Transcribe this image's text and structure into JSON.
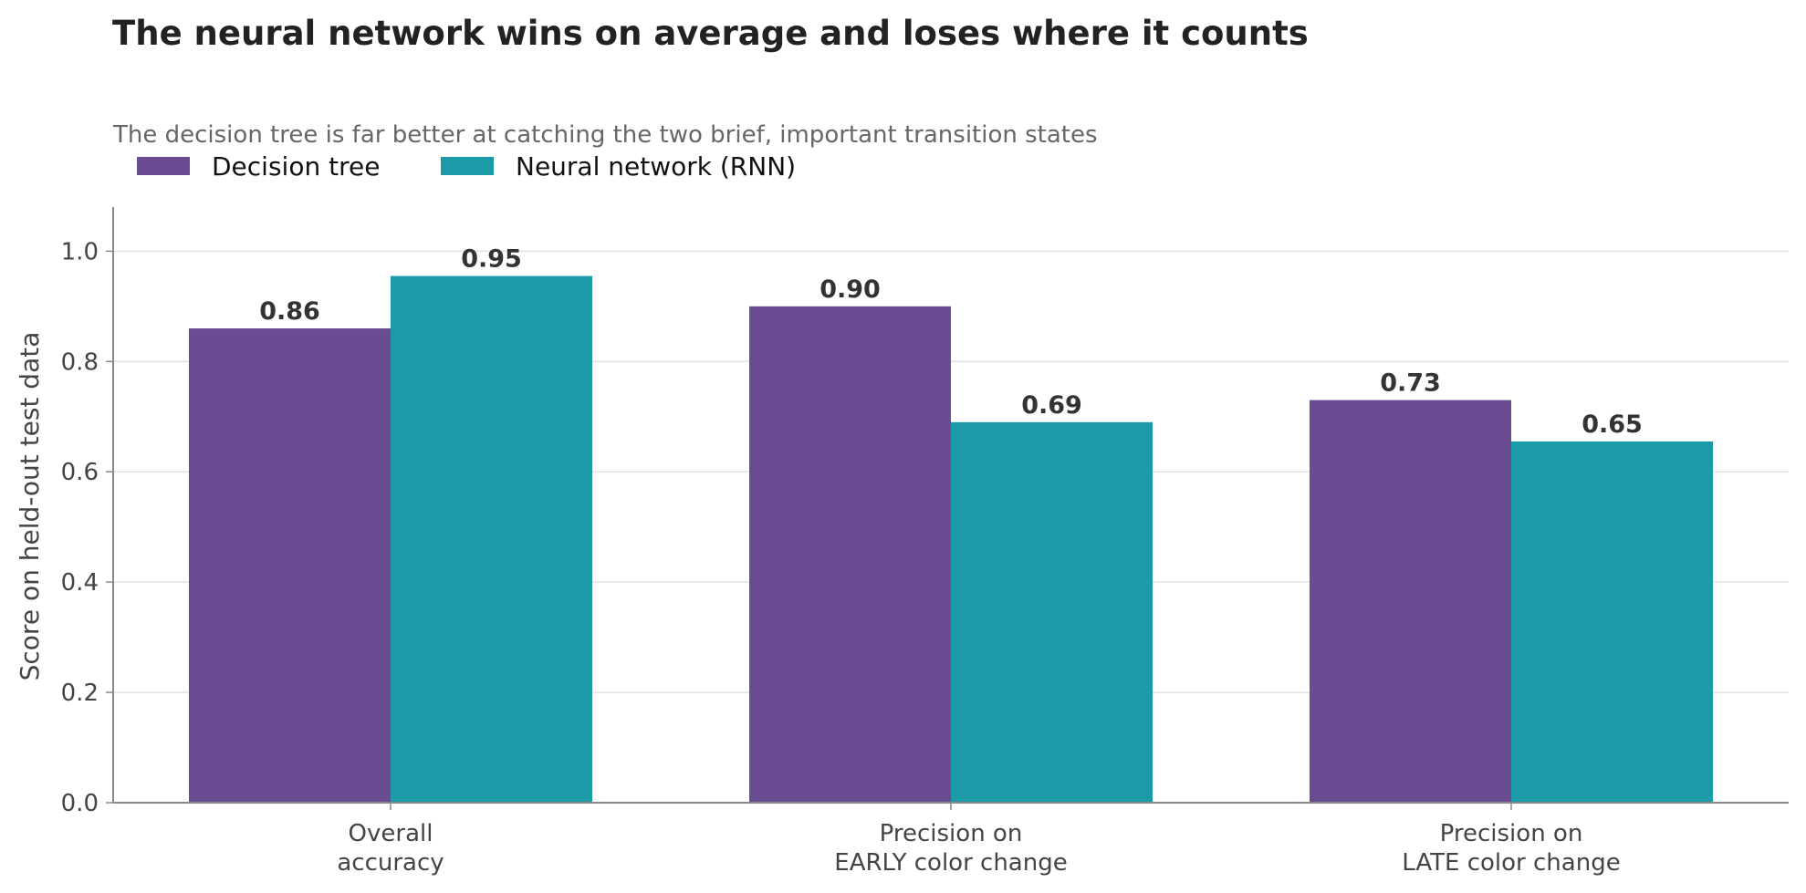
{
  "title": "The neural network wins on average and loses where it counts",
  "subtitle": "The decision tree is far better at catching the two brief, important transition states",
  "chart_data": {
    "type": "bar",
    "categories": [
      [
        "Overall",
        "accuracy"
      ],
      [
        "Precision on",
        "EARLY color change"
      ],
      [
        "Precision on",
        "LATE color change"
      ]
    ],
    "series": [
      {
        "name": "Decision tree",
        "color": "#6a4c93",
        "values": [
          0.86,
          0.9,
          0.73
        ],
        "labels": [
          "0.86",
          "0.90",
          "0.73"
        ]
      },
      {
        "name": "Neural network (RNN)",
        "color": "#1c9aa8",
        "values": [
          0.955,
          0.69,
          0.655
        ],
        "labels": [
          "0.95",
          "0.69",
          "0.65"
        ]
      }
    ],
    "ylabel": "Score on held-out test data",
    "xlabel": "",
    "ylim": [
      0,
      1.08
    ],
    "yticks": [
      0.0,
      0.2,
      0.4,
      0.6,
      0.8,
      1.0
    ],
    "ytick_labels": [
      "0.0",
      "0.2",
      "0.4",
      "0.6",
      "0.8",
      "1.0"
    ],
    "grid": "horizontal",
    "legend_position": "top-left"
  }
}
